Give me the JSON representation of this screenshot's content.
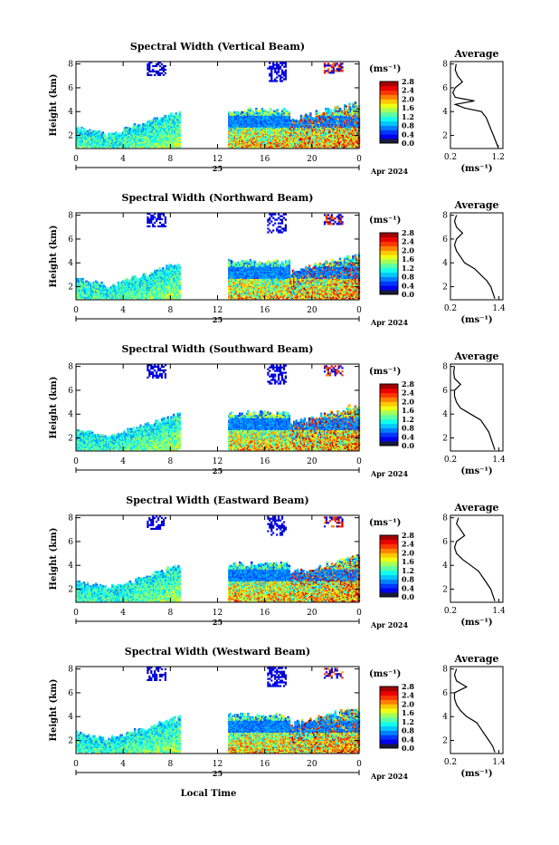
{
  "figure": {
    "x_axis_title": "Local Time",
    "day_label": "25",
    "date_label": "Apr 2024"
  },
  "chart_data": [
    {
      "type": "heatmap",
      "title": "Spectral Width (Vertical Beam)",
      "ylabel": "Height (km)",
      "x_ticks": [
        "0",
        "4",
        "8",
        "12",
        "16",
        "20",
        "0"
      ],
      "y_ticks": [
        "2",
        "4",
        "6",
        "8"
      ],
      "ylim": [
        0.9,
        8.2
      ],
      "colorbar": {
        "unit": "(ms⁻¹)",
        "ticks": [
          "0.0",
          "0.4",
          "0.8",
          "1.2",
          "1.6",
          "2.0",
          "2.4",
          "2.8"
        ],
        "range": [
          0.0,
          2.8
        ]
      },
      "average": {
        "title": "Average",
        "xlabel": "(ms⁻¹)",
        "x_ticks": [
          "0.2",
          "1.2"
        ],
        "xlim": [
          0.2,
          1.3
        ],
        "y_ticks": [
          "2",
          "4",
          "6",
          "8"
        ],
        "profile": [
          [
            1.2,
            1.0
          ],
          [
            1.15,
            1.5
          ],
          [
            1.1,
            2.0
          ],
          [
            1.05,
            2.5
          ],
          [
            1.0,
            3.0
          ],
          [
            0.95,
            3.5
          ],
          [
            0.85,
            4.0
          ],
          [
            0.5,
            4.3
          ],
          [
            0.3,
            4.6
          ],
          [
            0.7,
            4.9
          ],
          [
            0.3,
            5.2
          ],
          [
            0.25,
            5.6
          ],
          [
            0.3,
            6.0
          ],
          [
            0.45,
            6.5
          ],
          [
            0.35,
            7.0
          ],
          [
            0.3,
            7.5
          ],
          [
            0.32,
            8.0
          ]
        ]
      }
    },
    {
      "type": "heatmap",
      "title": "Spectral Width (Northward Beam)",
      "ylabel": "Height (km)",
      "x_ticks": [
        "0",
        "4",
        "8",
        "12",
        "16",
        "20",
        "0"
      ],
      "y_ticks": [
        "2",
        "4",
        "6",
        "8"
      ],
      "ylim": [
        0.9,
        8.2
      ],
      "colorbar": {
        "unit": "(ms⁻¹)",
        "ticks": [
          "0.0",
          "0.4",
          "0.8",
          "1.2",
          "1.6",
          "2.0",
          "2.4",
          "2.8"
        ],
        "range": [
          0.0,
          2.8
        ]
      },
      "average": {
        "title": "Average",
        "xlabel": "(ms⁻¹)",
        "x_ticks": [
          "0.2",
          "1.4"
        ],
        "xlim": [
          0.2,
          1.5
        ],
        "y_ticks": [
          "2",
          "4",
          "6",
          "8"
        ],
        "profile": [
          [
            1.3,
            1.0
          ],
          [
            1.25,
            1.5
          ],
          [
            1.2,
            2.0
          ],
          [
            1.1,
            2.5
          ],
          [
            0.95,
            3.0
          ],
          [
            0.8,
            3.5
          ],
          [
            0.55,
            4.0
          ],
          [
            0.45,
            4.5
          ],
          [
            0.35,
            5.0
          ],
          [
            0.3,
            5.5
          ],
          [
            0.35,
            6.0
          ],
          [
            0.5,
            6.5
          ],
          [
            0.35,
            7.0
          ],
          [
            0.3,
            7.5
          ],
          [
            0.35,
            8.0
          ]
        ]
      }
    },
    {
      "type": "heatmap",
      "title": "Spectral Width (Southward Beam)",
      "ylabel": "Height (km)",
      "x_ticks": [
        "0",
        "4",
        "8",
        "12",
        "16",
        "20",
        "0"
      ],
      "y_ticks": [
        "2",
        "4",
        "6",
        "8"
      ],
      "ylim": [
        0.9,
        8.2
      ],
      "colorbar": {
        "unit": "(ms⁻¹)",
        "ticks": [
          "0.0",
          "0.4",
          "0.8",
          "1.2",
          "1.6",
          "2.0",
          "2.4",
          "2.8"
        ],
        "range": [
          0.0,
          2.8
        ]
      },
      "average": {
        "title": "Average",
        "xlabel": "(ms⁻¹)",
        "x_ticks": [
          "0.2",
          "1.4"
        ],
        "xlim": [
          0.2,
          1.5
        ],
        "y_ticks": [
          "2",
          "4",
          "6",
          "8"
        ],
        "profile": [
          [
            1.3,
            1.0
          ],
          [
            1.25,
            1.5
          ],
          [
            1.2,
            2.0
          ],
          [
            1.15,
            2.5
          ],
          [
            1.05,
            3.0
          ],
          [
            0.95,
            3.5
          ],
          [
            0.7,
            4.0
          ],
          [
            0.45,
            4.5
          ],
          [
            0.35,
            5.0
          ],
          [
            0.3,
            5.5
          ],
          [
            0.3,
            6.0
          ],
          [
            0.45,
            6.5
          ],
          [
            0.3,
            7.0
          ],
          [
            0.28,
            7.5
          ],
          [
            0.3,
            8.0
          ]
        ]
      }
    },
    {
      "type": "heatmap",
      "title": "Spectral Width (Eastward Beam)",
      "ylabel": "Height (km)",
      "x_ticks": [
        "0",
        "4",
        "8",
        "12",
        "16",
        "20",
        "0"
      ],
      "y_ticks": [
        "2",
        "4",
        "6",
        "8"
      ],
      "ylim": [
        0.9,
        8.2
      ],
      "colorbar": {
        "unit": "(ms⁻¹)",
        "ticks": [
          "0.0",
          "0.4",
          "0.8",
          "1.2",
          "1.6",
          "2.0",
          "2.4",
          "2.8"
        ],
        "range": [
          0.0,
          2.8
        ]
      },
      "average": {
        "title": "Average",
        "xlabel": "(ms⁻¹)",
        "x_ticks": [
          "0.2",
          "1.4"
        ],
        "xlim": [
          0.2,
          1.5
        ],
        "y_ticks": [
          "2",
          "4",
          "6",
          "8"
        ],
        "profile": [
          [
            1.3,
            1.0
          ],
          [
            1.25,
            1.5
          ],
          [
            1.2,
            2.0
          ],
          [
            1.1,
            2.5
          ],
          [
            1.0,
            3.0
          ],
          [
            0.9,
            3.5
          ],
          [
            0.7,
            4.0
          ],
          [
            0.5,
            4.5
          ],
          [
            0.35,
            5.0
          ],
          [
            0.3,
            5.5
          ],
          [
            0.35,
            6.0
          ],
          [
            0.55,
            6.5
          ],
          [
            0.45,
            7.0
          ],
          [
            0.35,
            7.5
          ],
          [
            0.4,
            8.0
          ]
        ]
      }
    },
    {
      "type": "heatmap",
      "title": "Spectral Width (Westward Beam)",
      "ylabel": "Height (km)",
      "x_ticks": [
        "0",
        "4",
        "8",
        "12",
        "16",
        "20",
        "0"
      ],
      "y_ticks": [
        "2",
        "4",
        "6",
        "8"
      ],
      "ylim": [
        0.9,
        8.2
      ],
      "colorbar": {
        "unit": "(ms⁻¹)",
        "ticks": [
          "0.0",
          "0.4",
          "0.8",
          "1.2",
          "1.6",
          "2.0",
          "2.4",
          "2.8"
        ],
        "range": [
          0.0,
          2.8
        ]
      },
      "average": {
        "title": "Average",
        "xlabel": "(ms⁻¹)",
        "x_ticks": [
          "0.2",
          "1.4"
        ],
        "xlim": [
          0.2,
          1.5
        ],
        "y_ticks": [
          "2",
          "4",
          "6",
          "8"
        ],
        "profile": [
          [
            1.3,
            1.0
          ],
          [
            1.25,
            1.5
          ],
          [
            1.15,
            2.0
          ],
          [
            1.05,
            2.5
          ],
          [
            0.95,
            3.0
          ],
          [
            0.85,
            3.5
          ],
          [
            0.6,
            4.0
          ],
          [
            0.45,
            4.5
          ],
          [
            0.35,
            5.0
          ],
          [
            0.3,
            5.5
          ],
          [
            0.3,
            6.0
          ],
          [
            0.6,
            6.5
          ],
          [
            0.35,
            7.0
          ],
          [
            0.3,
            7.5
          ],
          [
            0.35,
            8.0
          ]
        ]
      }
    }
  ]
}
